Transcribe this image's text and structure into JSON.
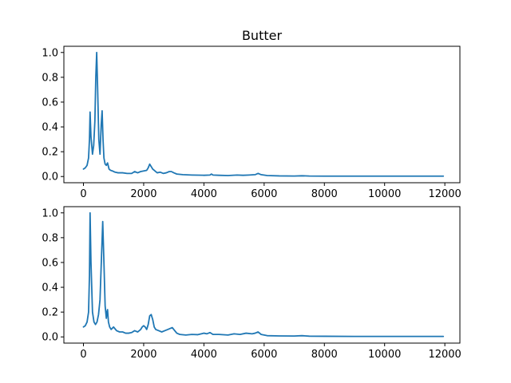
{
  "chart_data": [
    {
      "type": "line",
      "title": "Butter",
      "xlabel": "",
      "ylabel": "",
      "xlim": [
        -650,
        12500
      ],
      "ylim": [
        -0.05,
        1.05
      ],
      "xticks": [
        0,
        2000,
        4000,
        6000,
        8000,
        10000,
        12000
      ],
      "yticks": [
        0.0,
        0.2,
        0.4,
        0.6,
        0.8,
        1.0
      ],
      "xtick_labels": [
        "0",
        "2000",
        "4000",
        "6000",
        "8000",
        "10000",
        "12000"
      ],
      "ytick_labels": [
        "0.0",
        "0.2",
        "0.4",
        "0.6",
        "0.8",
        "1.0"
      ],
      "grid": false,
      "color": "#1f77b4",
      "x": [
        0,
        60,
        120,
        170,
        200,
        220,
        250,
        300,
        340,
        380,
        410,
        440,
        470,
        510,
        550,
        590,
        620,
        650,
        680,
        720,
        760,
        800,
        850,
        900,
        960,
        1050,
        1150,
        1300,
        1450,
        1600,
        1700,
        1800,
        1900,
        2000,
        2100,
        2150,
        2200,
        2250,
        2300,
        2350,
        2400,
        2450,
        2550,
        2650,
        2750,
        2850,
        2920,
        3000,
        3100,
        3300,
        3600,
        4000,
        4200,
        4250,
        4300,
        4500,
        4800,
        5100,
        5300,
        5500,
        5700,
        5800,
        5900,
        6100,
        6500,
        7000,
        7250,
        7500,
        8000,
        9000,
        10000,
        11000,
        11950
      ],
      "y": [
        0.06,
        0.07,
        0.09,
        0.15,
        0.3,
        0.52,
        0.32,
        0.18,
        0.25,
        0.45,
        0.8,
        1.0,
        0.72,
        0.3,
        0.18,
        0.42,
        0.53,
        0.3,
        0.15,
        0.1,
        0.09,
        0.11,
        0.06,
        0.05,
        0.045,
        0.035,
        0.03,
        0.03,
        0.025,
        0.025,
        0.04,
        0.03,
        0.04,
        0.045,
        0.05,
        0.07,
        0.1,
        0.08,
        0.06,
        0.05,
        0.04,
        0.03,
        0.035,
        0.025,
        0.03,
        0.04,
        0.04,
        0.03,
        0.02,
        0.015,
        0.012,
        0.01,
        0.012,
        0.02,
        0.012,
        0.01,
        0.008,
        0.012,
        0.01,
        0.012,
        0.015,
        0.025,
        0.015,
        0.008,
        0.005,
        0.004,
        0.006,
        0.004,
        0.003,
        0.003,
        0.003,
        0.003,
        0.003
      ]
    },
    {
      "type": "line",
      "title": "",
      "xlabel": "",
      "ylabel": "",
      "xlim": [
        -650,
        12500
      ],
      "ylim": [
        -0.05,
        1.05
      ],
      "xticks": [
        0,
        2000,
        4000,
        6000,
        8000,
        10000,
        12000
      ],
      "yticks": [
        0.0,
        0.2,
        0.4,
        0.6,
        0.8,
        1.0
      ],
      "xtick_labels": [
        "0",
        "2000",
        "4000",
        "6000",
        "8000",
        "10000",
        "12000"
      ],
      "ytick_labels": [
        "0.0",
        "0.2",
        "0.4",
        "0.6",
        "0.8",
        "1.0"
      ],
      "grid": false,
      "color": "#1f77b4",
      "x": [
        0,
        60,
        120,
        170,
        200,
        220,
        250,
        300,
        350,
        400,
        450,
        500,
        550,
        600,
        640,
        680,
        720,
        760,
        780,
        800,
        830,
        870,
        920,
        1000,
        1100,
        1200,
        1300,
        1400,
        1500,
        1600,
        1700,
        1800,
        1900,
        1950,
        2000,
        2050,
        2100,
        2150,
        2200,
        2250,
        2300,
        2350,
        2400,
        2500,
        2600,
        2700,
        2800,
        2900,
        2950,
        3000,
        3100,
        3200,
        3400,
        3600,
        3800,
        4000,
        4100,
        4200,
        4300,
        4500,
        4800,
        5000,
        5200,
        5400,
        5600,
        5700,
        5800,
        5900,
        6100,
        6500,
        7000,
        7250,
        7500,
        8000,
        9000,
        10000,
        11000,
        11950
      ],
      "y": [
        0.08,
        0.09,
        0.12,
        0.2,
        0.5,
        1.0,
        0.6,
        0.2,
        0.12,
        0.1,
        0.12,
        0.18,
        0.3,
        0.65,
        0.93,
        0.6,
        0.25,
        0.15,
        0.2,
        0.22,
        0.12,
        0.08,
        0.06,
        0.08,
        0.05,
        0.04,
        0.04,
        0.03,
        0.03,
        0.035,
        0.05,
        0.04,
        0.06,
        0.08,
        0.09,
        0.08,
        0.06,
        0.1,
        0.17,
        0.18,
        0.14,
        0.08,
        0.06,
        0.05,
        0.04,
        0.05,
        0.06,
        0.07,
        0.075,
        0.06,
        0.03,
        0.02,
        0.015,
        0.02,
        0.018,
        0.03,
        0.025,
        0.035,
        0.02,
        0.02,
        0.015,
        0.025,
        0.02,
        0.03,
        0.025,
        0.03,
        0.04,
        0.02,
        0.01,
        0.008,
        0.007,
        0.01,
        0.006,
        0.005,
        0.004,
        0.004,
        0.004,
        0.004
      ]
    }
  ]
}
